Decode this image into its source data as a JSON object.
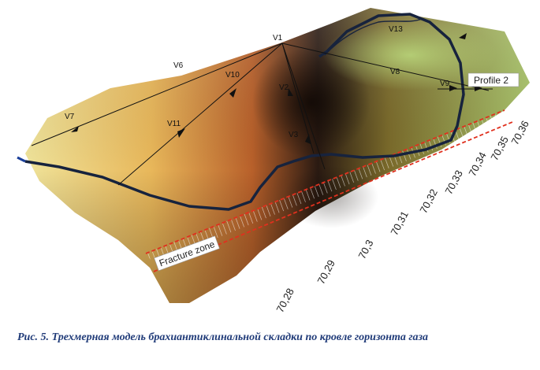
{
  "figure": {
    "vertex_labels": [
      "V1",
      "V2",
      "V3",
      "V6",
      "V7",
      "V8",
      "V9",
      "V10",
      "V11",
      "V13"
    ],
    "profile_label": "Profile 2",
    "fracture_label": "Fracture zone",
    "axis_ticks": [
      "70,28",
      "70,29",
      "70,3",
      "70,31",
      "70,32",
      "70,33",
      "70,34",
      "70,35",
      "70,36"
    ],
    "colors": {
      "outline": "#111a2e",
      "fracture": "#e0301e",
      "contour": "#17233d"
    }
  },
  "caption": "Рис. 5. Трехмерная модель брахиантиклинальной складки по кровле горизонта газа"
}
